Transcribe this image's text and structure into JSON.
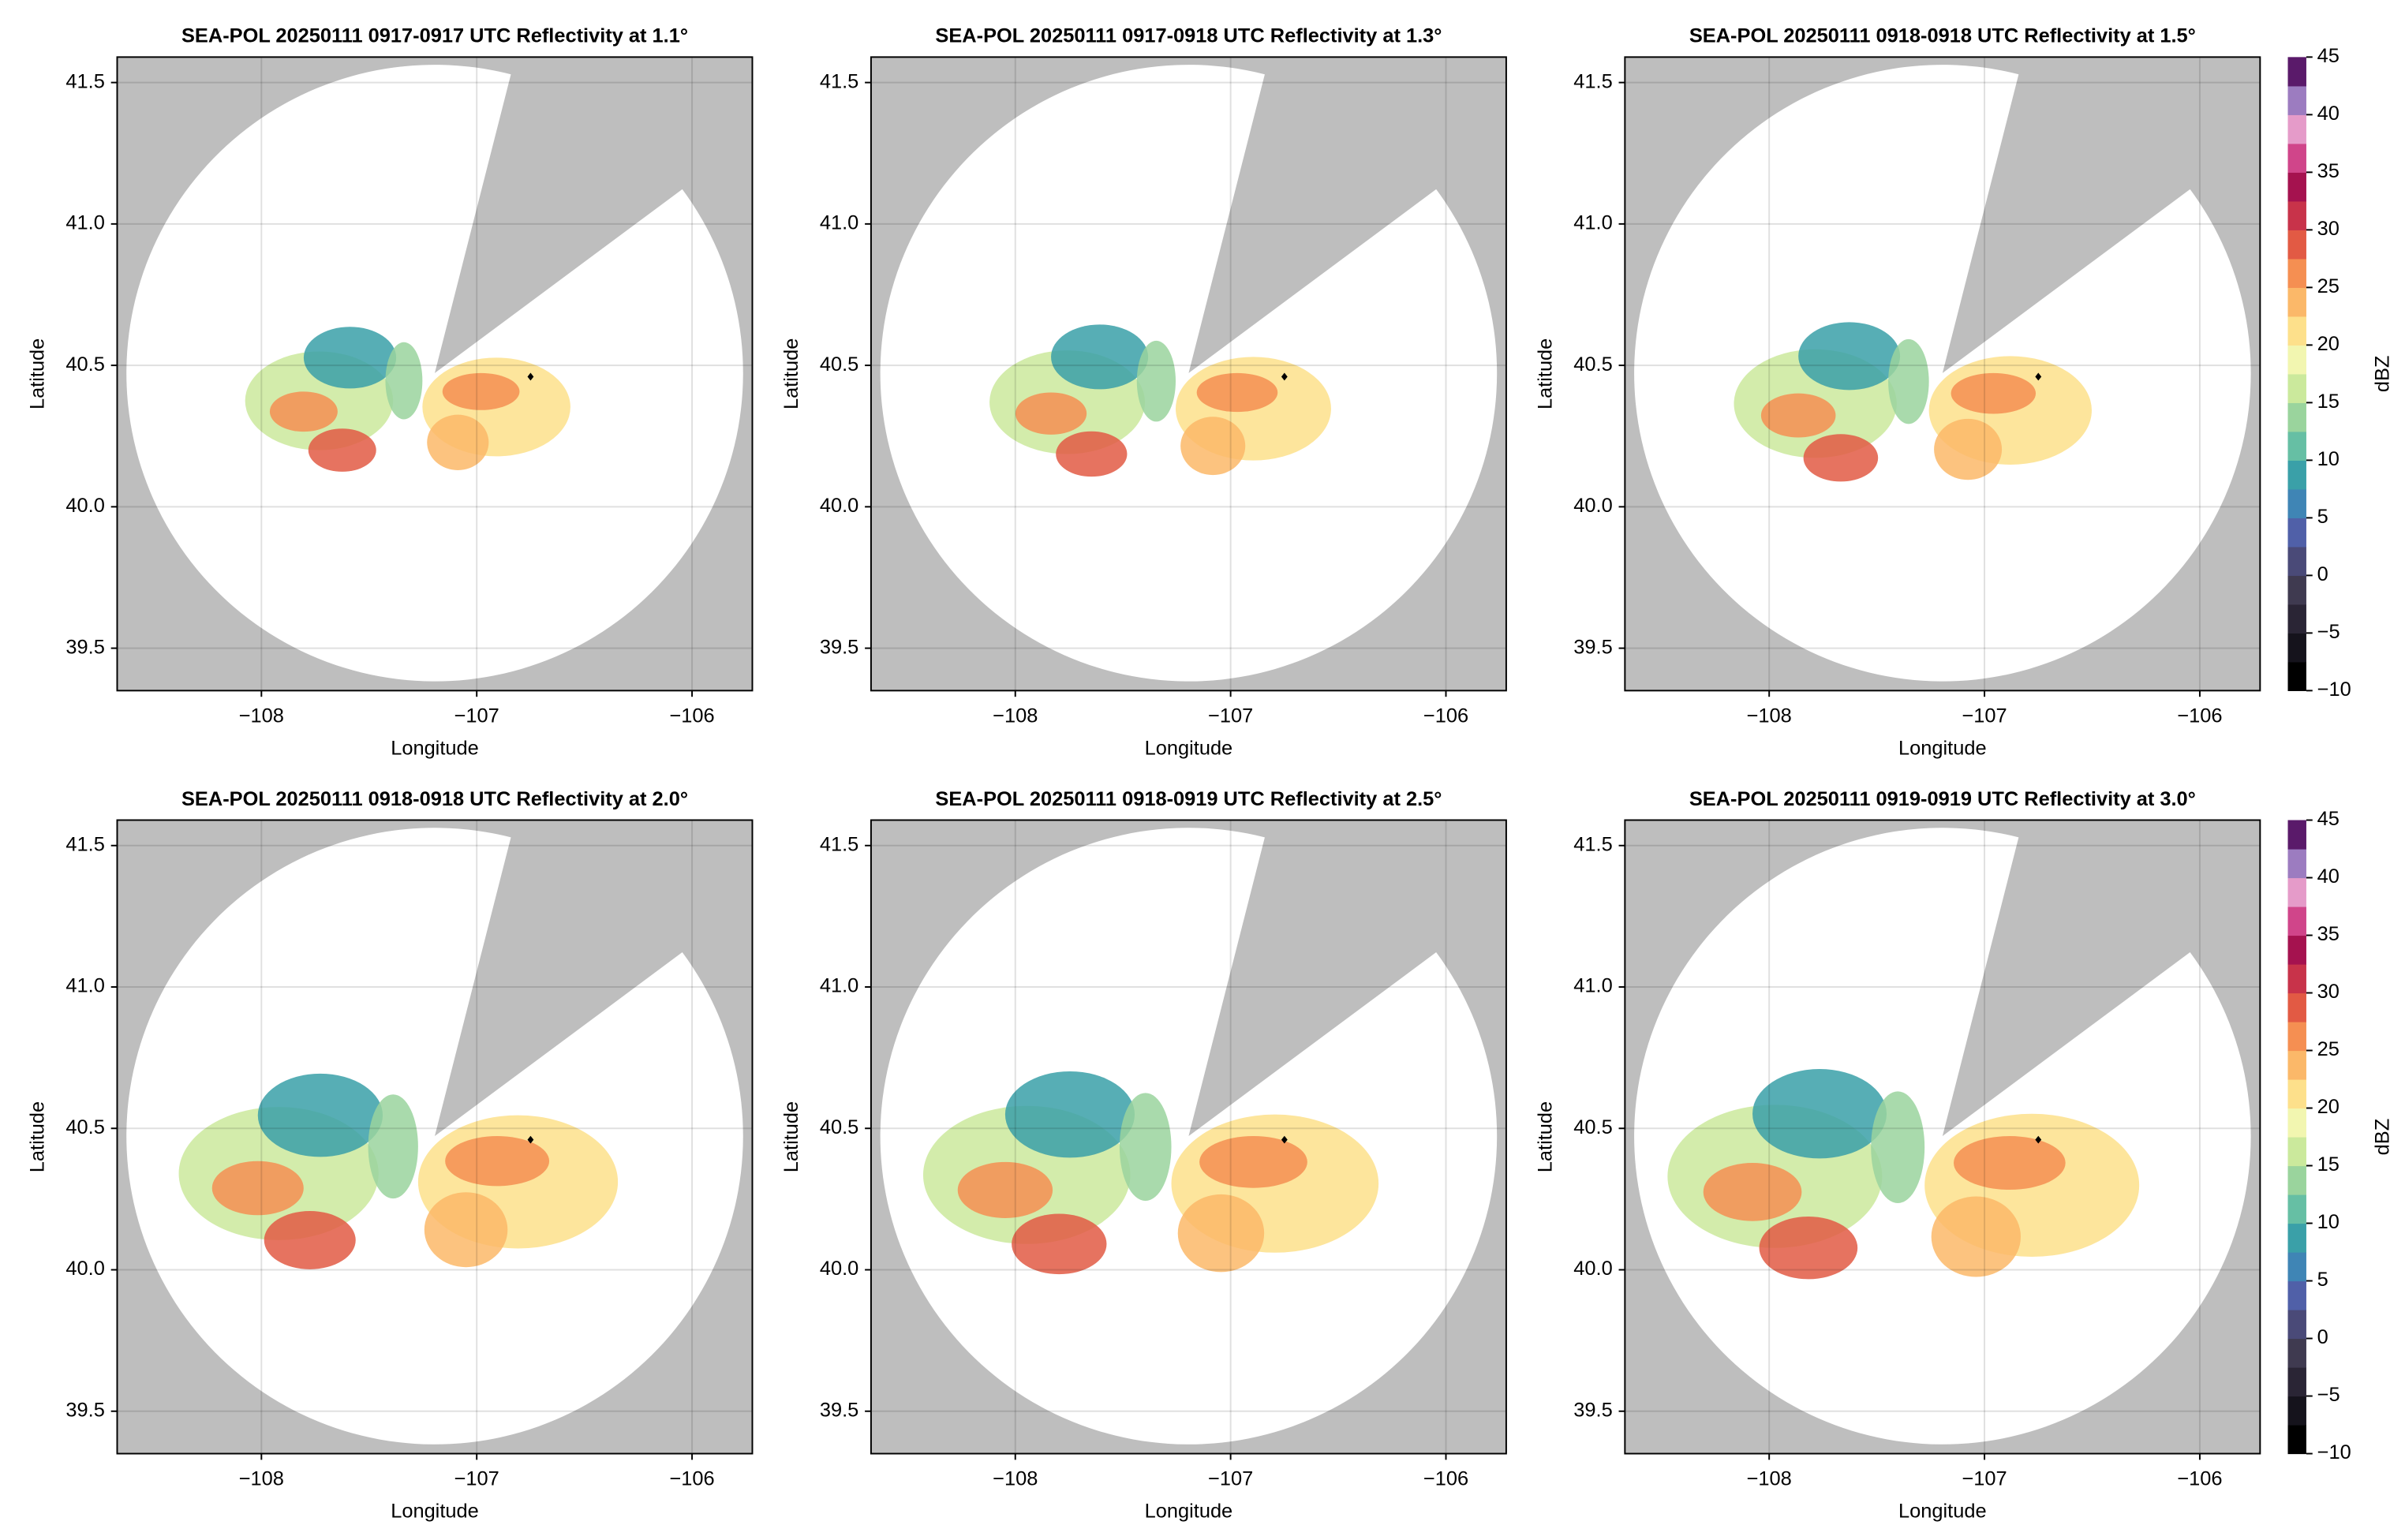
{
  "chart_data": [
    {
      "type": "radar",
      "title": "SEA-POL 20250111 0917-0917 UTC Reflectivity at 1.1°",
      "xlabel": "Longitude",
      "ylabel": "Latitude",
      "xlim": [
        -108.67,
        -105.72
      ],
      "ylim": [
        39.35,
        41.59
      ],
      "xticks": [
        {
          "value": -108,
          "label": "−108"
        },
        {
          "value": -107,
          "label": "−107"
        },
        {
          "value": -106,
          "label": "−106"
        }
      ],
      "yticks": [
        39.5,
        {
          "value": 40,
          "label": "40.0"
        },
        40.5,
        {
          "value": 41,
          "label": "41.0"
        },
        41.5
      ],
      "grid": true,
      "marker": {
        "x": -106.75,
        "y": 40.46
      }
    },
    {
      "type": "radar",
      "title": "SEA-POL 20250111 0917-0918 UTC Reflectivity at 1.3°",
      "xlabel": "Longitude",
      "ylabel": "Latitude",
      "xlim": [
        -108.67,
        -105.72
      ],
      "ylim": [
        39.35,
        41.59
      ],
      "xticks": [
        {
          "value": -108,
          "label": "−108"
        },
        {
          "value": -107,
          "label": "−107"
        },
        {
          "value": -106,
          "label": "−106"
        }
      ],
      "yticks": [
        39.5,
        {
          "value": 40,
          "label": "40.0"
        },
        40.5,
        {
          "value": 41,
          "label": "41.0"
        },
        41.5
      ],
      "grid": true,
      "marker": {
        "x": -106.75,
        "y": 40.46
      }
    },
    {
      "type": "radar",
      "title": "SEA-POL 20250111 0918-0918 UTC Reflectivity at 1.5°",
      "xlabel": "Longitude",
      "ylabel": "Latitude",
      "xlim": [
        -108.67,
        -105.72
      ],
      "ylim": [
        39.35,
        41.59
      ],
      "xticks": [
        {
          "value": -108,
          "label": "−108"
        },
        {
          "value": -107,
          "label": "−107"
        },
        {
          "value": -106,
          "label": "−106"
        }
      ],
      "yticks": [
        39.5,
        {
          "value": 40,
          "label": "40.0"
        },
        40.5,
        {
          "value": 41,
          "label": "41.0"
        },
        41.5
      ],
      "grid": true,
      "marker": {
        "x": -106.75,
        "y": 40.46
      },
      "colorbar": {
        "label": "dBZ",
        "lim": [
          -10,
          45
        ],
        "ticks": [
          {
            "value": -10,
            "label": "−10"
          },
          {
            "value": -5,
            "label": "−5"
          },
          0,
          5,
          10,
          15,
          20,
          25,
          30,
          35,
          40,
          45
        ],
        "colors": [
          "#000000",
          "#15131c",
          "#2a2535",
          "#3f3a50",
          "#4a4a78",
          "#5060a8",
          "#3f85b5",
          "#3aa0a8",
          "#66bfa4",
          "#9ad49d",
          "#cbe99c",
          "#f2f6b0",
          "#fde08b",
          "#fbb869",
          "#f58f52",
          "#e25a44",
          "#c8334a",
          "#a5124f",
          "#d0458a",
          "#e59bc9",
          "#9c7cc0",
          "#5a1a6a"
        ]
      }
    },
    {
      "type": "radar",
      "title": "SEA-POL 20250111 0918-0918 UTC Reflectivity at 2.0°",
      "xlabel": "Longitude",
      "ylabel": "Latitude",
      "xlim": [
        -108.67,
        -105.72
      ],
      "ylim": [
        39.35,
        41.59
      ],
      "xticks": [
        {
          "value": -108,
          "label": "−108"
        },
        {
          "value": -107,
          "label": "−107"
        },
        {
          "value": -106,
          "label": "−106"
        }
      ],
      "yticks": [
        39.5,
        {
          "value": 40,
          "label": "40.0"
        },
        40.5,
        {
          "value": 41,
          "label": "41.0"
        },
        41.5
      ],
      "grid": true,
      "marker": {
        "x": -106.75,
        "y": 40.46
      }
    },
    {
      "type": "radar",
      "title": "SEA-POL 20250111 0918-0919 UTC Reflectivity at 2.5°",
      "xlabel": "Longitude",
      "ylabel": "Latitude",
      "xlim": [
        -108.67,
        -105.72
      ],
      "ylim": [
        39.35,
        41.59
      ],
      "xticks": [
        {
          "value": -108,
          "label": "−108"
        },
        {
          "value": -107,
          "label": "−107"
        },
        {
          "value": -106,
          "label": "−106"
        }
      ],
      "yticks": [
        39.5,
        {
          "value": 40,
          "label": "40.0"
        },
        40.5,
        {
          "value": 41,
          "label": "41.0"
        },
        41.5
      ],
      "grid": true,
      "marker": {
        "x": -106.75,
        "y": 40.46
      }
    },
    {
      "type": "radar",
      "title": "SEA-POL 20250111 0919-0919 UTC Reflectivity at 3.0°",
      "xlabel": "Longitude",
      "ylabel": "Latitude",
      "xlim": [
        -108.67,
        -105.72
      ],
      "ylim": [
        39.35,
        41.59
      ],
      "xticks": [
        {
          "value": -108,
          "label": "−108"
        },
        {
          "value": -107,
          "label": "−107"
        },
        {
          "value": -106,
          "label": "−106"
        }
      ],
      "yticks": [
        39.5,
        {
          "value": 40,
          "label": "40.0"
        },
        40.5,
        {
          "value": 41,
          "label": "41.0"
        },
        41.5
      ],
      "grid": true,
      "marker": {
        "x": -106.75,
        "y": 40.46
      },
      "colorbar": {
        "label": "dBZ",
        "lim": [
          -10,
          45
        ],
        "ticks": [
          {
            "value": -10,
            "label": "−10"
          },
          {
            "value": -5,
            "label": "−5"
          },
          0,
          5,
          10,
          15,
          20,
          25,
          30,
          35,
          40,
          45
        ],
        "colors": [
          "#000000",
          "#15131c",
          "#2a2535",
          "#3f3a50",
          "#4a4a78",
          "#5060a8",
          "#3f85b5",
          "#3aa0a8",
          "#66bfa4",
          "#9ad49d",
          "#cbe99c",
          "#f2f6b0",
          "#fde08b",
          "#fbb869",
          "#f58f52",
          "#e25a44",
          "#c8334a",
          "#a5124f",
          "#d0458a",
          "#e59bc9",
          "#9c7cc0",
          "#5a1a6a"
        ]
      }
    }
  ]
}
